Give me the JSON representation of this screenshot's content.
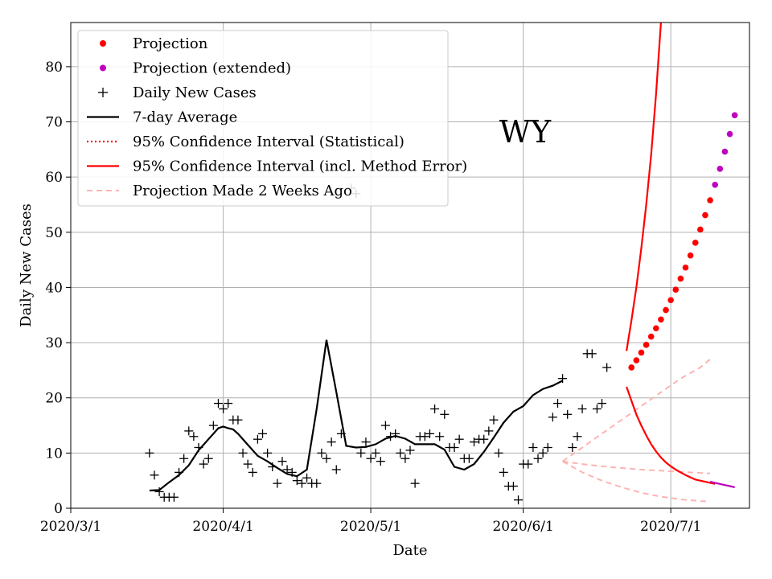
{
  "chart_data": {
    "type": "scatter",
    "title": "WY",
    "xlabel": "Date",
    "ylabel": "Daily New Cases",
    "ylim": [
      0,
      88
    ],
    "x_ticks": [
      "2020/3/1",
      "2020/4/1",
      "2020/5/1",
      "2020/6/1",
      "2020/7/1"
    ],
    "y_ticks": [
      "0",
      "10",
      "20",
      "30",
      "40",
      "50",
      "60",
      "70",
      "80"
    ],
    "grid": true,
    "legend_position": "top-left",
    "legend": [
      {
        "label": "Projection",
        "style": "red-dot"
      },
      {
        "label": "Projection (extended)",
        "style": "magenta-dot"
      },
      {
        "label": "Daily New Cases",
        "style": "black-plus"
      },
      {
        "label": "7-day Average",
        "style": "black-line"
      },
      {
        "label": "95% Confidence Interval (Statistical)",
        "style": "red-dotted"
      },
      {
        "label": "95% Confidence Interval (incl. Method Error)",
        "style": "red-solid"
      },
      {
        "label": "Projection Made 2 Weeks Ago",
        "style": "pink-dashed"
      }
    ],
    "x_domain_days": [
      0,
      138
    ],
    "colors": {
      "projection": "#ff0000",
      "extended": "#bf00bf",
      "cases": "#000000",
      "average": "#000000",
      "ci": "#ff0000",
      "old_projection": "#ffb3b3"
    },
    "daily_new_cases": {
      "day": [
        16,
        17,
        18,
        19,
        20,
        21,
        22,
        23,
        24,
        25,
        26,
        27,
        28,
        29,
        30,
        31,
        32,
        33,
        34,
        35,
        36,
        37,
        38,
        39,
        40,
        41,
        42,
        43,
        44,
        45,
        46,
        47,
        48,
        49,
        50,
        51,
        52,
        53,
        54,
        55,
        56,
        57,
        58,
        59,
        60,
        61,
        62,
        63,
        64,
        65,
        66,
        67,
        68,
        69,
        70,
        71,
        72,
        73,
        74,
        75,
        76,
        77,
        78,
        79,
        80,
        81,
        82,
        83,
        84,
        85,
        86,
        87,
        88,
        89,
        90,
        91,
        92,
        93,
        94,
        95,
        96,
        97,
        98,
        99,
        100,
        101,
        102,
        103,
        104,
        105,
        106,
        107,
        108,
        109,
        110,
        111,
        112,
        113,
        114,
        115,
        116,
        117,
        118,
        119,
        120,
        121,
        122,
        123,
        124,
        125,
        126,
        127,
        128,
        129,
        130,
        131,
        132,
        133,
        134,
        135,
        136,
        137,
        138
      ],
      "value": [
        10,
        6,
        3,
        2,
        2,
        2,
        6.5,
        9,
        14,
        13,
        11,
        8,
        9,
        15,
        19,
        18,
        19,
        16,
        16,
        10,
        8,
        6.5,
        12.5,
        13.5,
        10,
        7.5,
        4.5,
        8.5,
        7,
        6.5,
        5,
        4.5,
        5.5,
        4.5,
        4.5,
        10,
        9,
        12,
        7,
        13.5,
        null,
        58,
        57,
        10,
        12,
        9,
        10,
        8.5,
        15,
        13,
        13.5,
        10,
        9,
        10.5,
        4.5,
        13,
        13,
        13.5,
        18,
        13,
        17,
        11,
        11,
        12.5,
        9,
        9,
        12,
        12.5,
        12.5,
        14,
        16,
        10,
        6.5,
        4,
        4,
        1.5,
        8,
        8,
        11,
        9,
        10,
        11,
        16.5,
        19,
        23.5,
        17,
        11,
        13,
        18,
        28,
        28,
        18,
        19,
        25.5,
        null,
        null,
        null,
        null,
        null,
        null,
        null,
        null,
        null,
        null,
        null,
        null,
        null,
        null,
        null,
        null,
        null,
        null,
        null,
        null,
        null,
        null,
        null,
        null,
        null
      ]
    },
    "seven_day_average": {
      "day": [
        16,
        18,
        20,
        22,
        24,
        26,
        28,
        30,
        31,
        32,
        33,
        34,
        36,
        38,
        40,
        42,
        44,
        46,
        48,
        50,
        52,
        54,
        56,
        58,
        60,
        62,
        64,
        66,
        68,
        70,
        72,
        74,
        76,
        78,
        80,
        82,
        84,
        86,
        88,
        90,
        92,
        94,
        96,
        98,
        100,
        102,
        104,
        106,
        108,
        110,
        112,
        114,
        116,
        118,
        120,
        122,
        124,
        126,
        128,
        130,
        132
      ],
      "value": [
        3.2,
        3.3,
        4.7,
        6,
        7.8,
        10.5,
        12.5,
        14.5,
        14.8,
        14.5,
        14.3,
        13.5,
        11.5,
        9.5,
        8.5,
        7.3,
        6.2,
        5.8,
        7,
        18,
        30.5,
        21,
        11.3,
        11,
        11.1,
        11.6,
        12.6,
        13.1,
        12.6,
        11.6,
        11.6,
        11.6,
        10.6,
        7.5,
        7,
        8,
        10.2,
        12.8,
        15.5,
        17.5,
        18.5,
        20.5,
        21.6,
        22.2,
        23.1,
        null,
        null,
        null,
        null,
        null,
        null,
        null,
        null,
        null,
        null,
        null,
        null,
        null,
        null,
        null,
        null
      ]
    },
    "projection": {
      "day": [
        114,
        115,
        116,
        117,
        118,
        119,
        120,
        121,
        122,
        123,
        124,
        125,
        126,
        127,
        128,
        129,
        130
      ],
      "value": [
        25.5,
        26.8,
        28.2,
        29.6,
        31.1,
        32.6,
        34.2,
        35.9,
        37.7,
        39.6,
        41.6,
        43.6,
        45.8,
        48.1,
        50.5,
        53.1,
        55.8
      ]
    },
    "projection_extended": {
      "day": [
        131,
        132,
        133,
        134,
        135
      ],
      "value": [
        58.6,
        61.5,
        64.6,
        67.8,
        71.2
      ]
    },
    "ci_method_error_upper": {
      "day": [
        113,
        114,
        115,
        116,
        117,
        118,
        119,
        120,
        121,
        122,
        123,
        124,
        125,
        126,
        127,
        128,
        129
      ],
      "value": [
        28.5,
        34,
        40,
        47,
        55,
        64,
        75,
        88,
        null,
        null,
        null,
        null,
        null,
        null,
        null,
        null,
        null
      ]
    },
    "ci_method_error_lower": {
      "day": [
        113,
        114,
        115,
        116,
        117,
        118,
        119,
        120,
        121,
        122,
        123,
        124,
        125,
        126,
        127,
        128,
        129,
        130,
        131
      ],
      "value": [
        22,
        19.5,
        17,
        15,
        13.2,
        11.6,
        10.3,
        9.2,
        8.3,
        7.6,
        7,
        6.5,
        6,
        5.6,
        5.2,
        5,
        4.8,
        4.6,
        4.4
      ]
    },
    "ci_extended_lower": {
      "day": [
        130,
        131,
        132,
        133,
        134,
        135
      ],
      "value": [
        4.8,
        4.6,
        4.4,
        4.2,
        4.0,
        3.8
      ]
    },
    "old_projection_center": {
      "day": [
        100,
        104,
        108,
        112,
        116,
        120,
        124,
        128,
        130
      ],
      "value": [
        8.5,
        11,
        13.5,
        16,
        18.5,
        21,
        23.5,
        25.5,
        27
      ]
    },
    "old_projection_lower_a": {
      "day": [
        100,
        104,
        108,
        112,
        116,
        120,
        124,
        128,
        130
      ],
      "value": [
        8.5,
        8,
        7.6,
        7.3,
        7,
        6.8,
        6.6,
        6.4,
        6.3
      ]
    },
    "old_projection_lower_b": {
      "day": [
        100,
        104,
        108,
        112,
        116,
        120,
        124,
        128,
        130
      ],
      "value": [
        8.5,
        6.5,
        5,
        3.8,
        2.8,
        2.1,
        1.6,
        1.3,
        1.2
      ]
    }
  }
}
